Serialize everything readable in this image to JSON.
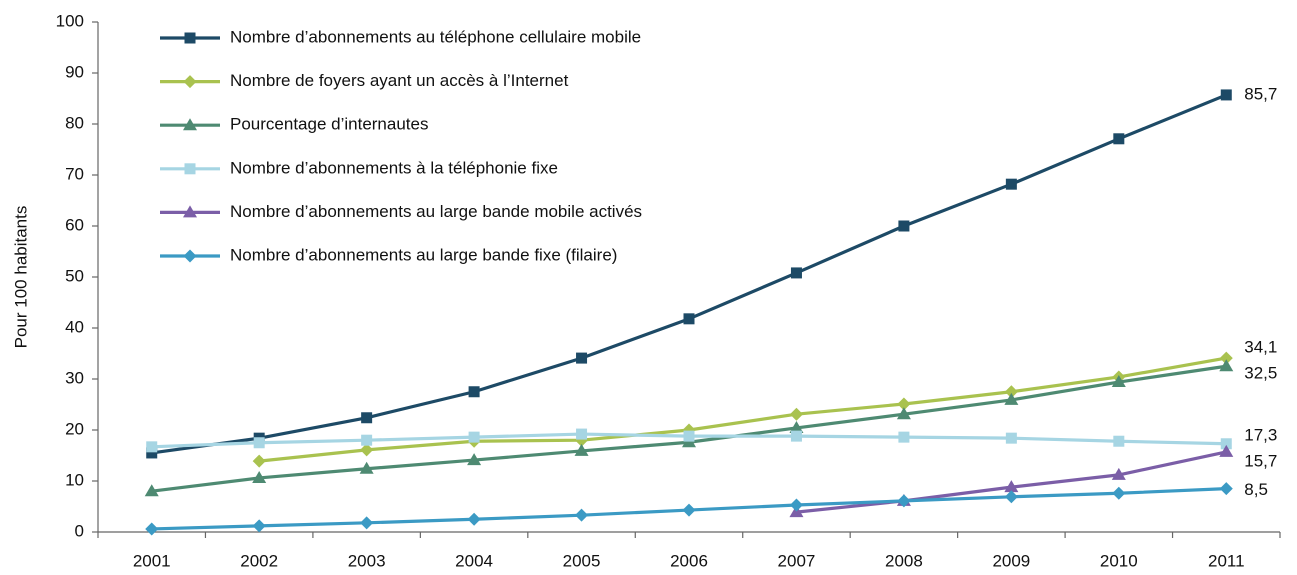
{
  "chart_data": {
    "type": "line",
    "y_label": "Pour 100 habitants",
    "categories": [
      "2001",
      "2002",
      "2003",
      "2004",
      "2005",
      "2006",
      "2007",
      "2008",
      "2009",
      "2010",
      "2011"
    ],
    "ylim": [
      0,
      100
    ],
    "yticks": [
      0,
      10,
      20,
      30,
      40,
      50,
      60,
      70,
      80,
      90,
      100
    ],
    "grid": false,
    "legend": "top-left",
    "series": [
      {
        "name": "Nombre d’abonnements au téléphone cellulaire mobile",
        "color": "#1d4a66",
        "marker": "square",
        "values": [
          15.5,
          18.4,
          22.4,
          27.5,
          34.1,
          41.8,
          50.8,
          60,
          68.2,
          77.1,
          85.7
        ],
        "value_labels": [
          null,
          null,
          null,
          null,
          null,
          null,
          null,
          null,
          null,
          null,
          "85,7"
        ]
      },
      {
        "name": "Nombre de foyers ayant un accès à l’Internet",
        "color": "#a9c24f",
        "marker": "diamond",
        "values": [
          null,
          13.9,
          16.1,
          17.8,
          18,
          20,
          23.1,
          25.1,
          27.5,
          30.4,
          34.1
        ],
        "value_labels": [
          null,
          null,
          null,
          null,
          null,
          null,
          null,
          null,
          null,
          null,
          "34,1"
        ]
      },
      {
        "name": "Pourcentage d’internautes",
        "color": "#4e8a72",
        "marker": "triangle",
        "values": [
          8,
          10.6,
          12.4,
          14.1,
          15.9,
          17.6,
          20.4,
          23.1,
          25.9,
          29.4,
          32.5
        ],
        "value_labels": [
          null,
          null,
          null,
          null,
          null,
          null,
          null,
          null,
          null,
          null,
          "32,5"
        ]
      },
      {
        "name": "Nombre d’abonnements à la téléphonie fixe",
        "color": "#a6d5e3",
        "marker": "square",
        "values": [
          16.7,
          17.5,
          18,
          18.6,
          19.2,
          18.8,
          18.8,
          18.6,
          18.4,
          17.8,
          17.3
        ],
        "value_labels": [
          null,
          null,
          null,
          null,
          null,
          null,
          null,
          null,
          null,
          null,
          "17,3"
        ]
      },
      {
        "name": "Nombre d’abonnements au large bande mobile activés",
        "color": "#7b5ea7",
        "marker": "triangle",
        "values": [
          null,
          null,
          null,
          null,
          null,
          null,
          3.9,
          6.1,
          8.8,
          11.2,
          15.7
        ],
        "value_labels": [
          null,
          null,
          null,
          null,
          null,
          null,
          null,
          null,
          null,
          null,
          "15,7"
        ]
      },
      {
        "name": "Nombre d’abonnements au large bande fixe (filaire)",
        "color": "#3b9ac4",
        "marker": "diamond",
        "values": [
          0.6,
          1.2,
          1.8,
          2.5,
          3.3,
          4.3,
          5.3,
          6.1,
          6.9,
          7.6,
          8.5
        ],
        "value_labels": [
          null,
          null,
          null,
          null,
          null,
          null,
          null,
          null,
          null,
          null,
          "8,5"
        ]
      }
    ]
  }
}
